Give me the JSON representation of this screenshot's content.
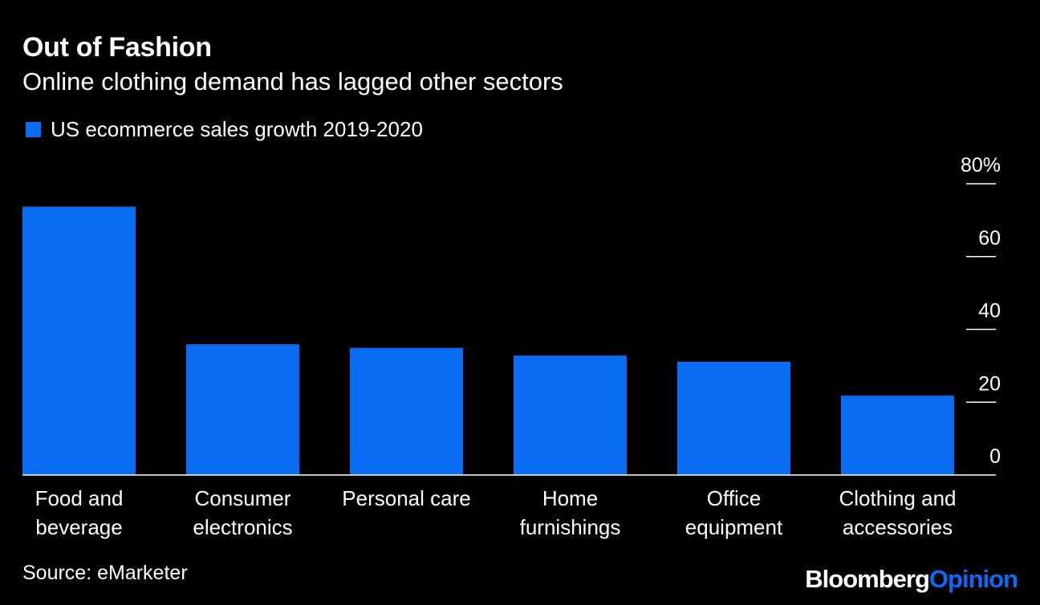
{
  "title": "Out of Fashion",
  "subtitle": "Online clothing demand has lagged other sectors",
  "colors": {
    "background": "#000000",
    "bar": "#0a6cf5",
    "text": "#ffffff",
    "axis": "#ffffff"
  },
  "chart_data": {
    "type": "bar",
    "categories": [
      [
        "Food and",
        "beverage"
      ],
      [
        "Consumer",
        "electronics"
      ],
      [
        "Personal care"
      ],
      [
        "Home",
        "furnishings"
      ],
      [
        "Office",
        "equipment"
      ],
      [
        "Clothing and",
        "accessories"
      ]
    ],
    "series": [
      {
        "name": "US ecommerce sales growth 2019-2020",
        "values": [
          73.7,
          35.9,
          34.9,
          32.8,
          31.1,
          21.8
        ]
      }
    ],
    "y_ticks": [
      "0",
      "20",
      "40",
      "60",
      "80%"
    ],
    "y_tick_values": [
      0,
      20,
      40,
      60,
      80
    ],
    "ylim": [
      0,
      80
    ],
    "y_axis_position": "right",
    "grid": false,
    "legend_position": "top-left"
  },
  "source": "Source: eMarketer",
  "brand": {
    "part1": "Bloomberg",
    "part2": "Opinion"
  }
}
